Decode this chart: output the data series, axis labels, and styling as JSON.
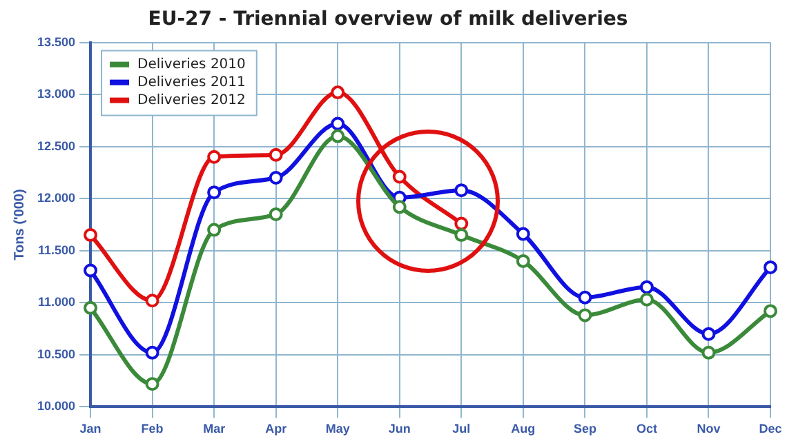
{
  "chart_data": {
    "type": "line",
    "title": "EU-27 - Triennial overview of milk deliveries",
    "ylabel": "Tons ('000)",
    "categories": [
      "Jan",
      "Feb",
      "Mar",
      "Apr",
      "May",
      "Jun",
      "Jul",
      "Aug",
      "Sep",
      "Oct",
      "Nov",
      "Dec"
    ],
    "series": [
      {
        "name": "Deliveries 2010",
        "color": "#3a8a3a",
        "values": [
          10950,
          10220,
          11700,
          11850,
          12600,
          11920,
          11650,
          11400,
          10880,
          11030,
          10520,
          10920
        ]
      },
      {
        "name": "Deliveries 2011",
        "color": "#1010e0",
        "values": [
          11310,
          10520,
          12060,
          12200,
          12720,
          12010,
          12080,
          11660,
          11050,
          11150,
          10700,
          11340
        ]
      },
      {
        "name": "Deliveries 2012",
        "color": "#e01010",
        "values": [
          11650,
          11020,
          12400,
          12420,
          13020,
          12210,
          11760,
          null,
          null,
          null,
          null,
          null
        ]
      }
    ],
    "ylim": [
      10000,
      13500
    ],
    "yticks": [
      {
        "value": 10000,
        "label": "10.000"
      },
      {
        "value": 10500,
        "label": "10.500"
      },
      {
        "value": 11000,
        "label": "11.000"
      },
      {
        "value": 11500,
        "label": "11.500"
      },
      {
        "value": 12000,
        "label": "12.000"
      },
      {
        "value": 12500,
        "label": "12.500"
      },
      {
        "value": 13000,
        "label": "13.000"
      },
      {
        "value": 13500,
        "label": "13.500"
      }
    ],
    "grid": true,
    "legend": "top left",
    "marker": "circle",
    "line_style": "solid"
  }
}
